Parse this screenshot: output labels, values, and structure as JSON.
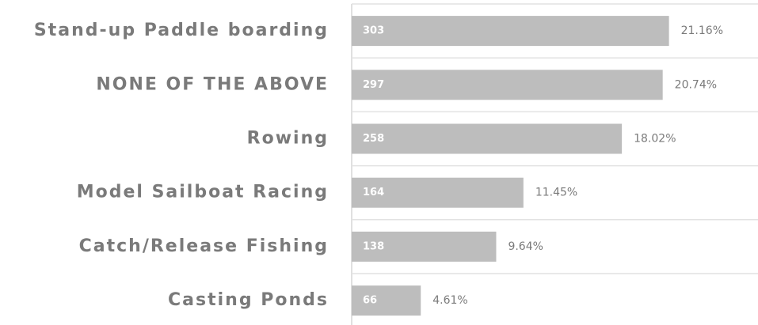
{
  "chart_data": {
    "type": "bar",
    "categories": [
      "Stand-up Paddle boarding",
      "NONE OF THE ABOVE",
      "Rowing",
      "Model Sailboat Racing",
      "Catch/Release Fishing",
      "Casting Ponds"
    ],
    "values": [
      303,
      297,
      258,
      164,
      138,
      66
    ],
    "percent_labels": [
      "21.16%",
      "20.74%",
      "18.02%",
      "11.45%",
      "9.64%",
      "4.61%"
    ],
    "color": "#bdbdbd",
    "xlim": [
      0,
      388
    ]
  }
}
